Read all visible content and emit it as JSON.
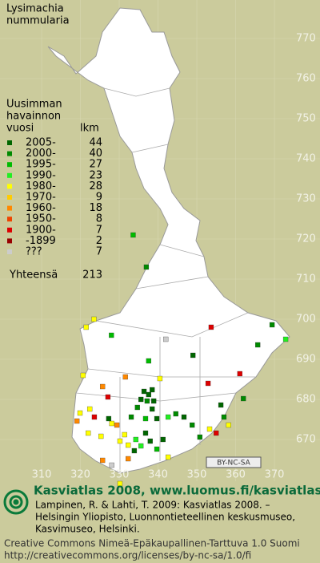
{
  "title": [
    "Lysimachia",
    "nummularia"
  ],
  "legend": {
    "heading": [
      "Uusimman",
      "havainnon",
      "vuosi"
    ],
    "count_heading": "lkm",
    "rows": [
      {
        "label": "2005-",
        "count": 44,
        "color": "#006600"
      },
      {
        "label": "2000-",
        "count": 40,
        "color": "#008a00"
      },
      {
        "label": "1995-",
        "count": 27,
        "color": "#00bb00"
      },
      {
        "label": "1990-",
        "count": 23,
        "color": "#22ee22"
      },
      {
        "label": "1980-",
        "count": 28,
        "color": "#ffff00"
      },
      {
        "label": "1970-",
        "count": 9,
        "color": "#ffcc00"
      },
      {
        "label": "1960-",
        "count": 18,
        "color": "#ff8800"
      },
      {
        "label": "1950-",
        "count": 8,
        "color": "#ee4400"
      },
      {
        "label": "1900-",
        "count": 7,
        "color": "#dd0000"
      },
      {
        "label": "-1899",
        "count": 2,
        "color": "#990000"
      },
      {
        "label": "???",
        "count": 7,
        "color": "#cccccc"
      }
    ],
    "total_label": "Yhteensä",
    "total": 213
  },
  "map": {
    "yticks": [
      770,
      760,
      750,
      740,
      730,
      720,
      710,
      700,
      690,
      680,
      670
    ],
    "xticks": [
      310,
      320,
      330,
      340,
      350,
      360,
      370
    ],
    "points": [
      [
        321.5,
        698,
        4
      ],
      [
        323.5,
        700,
        4
      ],
      [
        328,
        696,
        2
      ],
      [
        349,
        691,
        0
      ],
      [
        353.7,
        698,
        8
      ],
      [
        342,
        695,
        10
      ],
      [
        337,
        713,
        1
      ],
      [
        333.6,
        721,
        2
      ],
      [
        365.7,
        693.6,
        1
      ],
      [
        372.9,
        695,
        3
      ],
      [
        369.4,
        698.6,
        1
      ],
      [
        320.7,
        686,
        4
      ],
      [
        325.7,
        683.2,
        6
      ],
      [
        327.1,
        680.6,
        8
      ],
      [
        331.6,
        685.6,
        6
      ],
      [
        337.6,
        689.6,
        2
      ],
      [
        340.5,
        685.2,
        4
      ],
      [
        352.9,
        684,
        8
      ],
      [
        361.1,
        686.4,
        8
      ],
      [
        362,
        680.2,
        1
      ],
      [
        356.2,
        678.6,
        0
      ],
      [
        336.4,
        682,
        0
      ],
      [
        337.6,
        681.2,
        0
      ],
      [
        338.5,
        682.4,
        0
      ],
      [
        335.6,
        680,
        0
      ],
      [
        337.2,
        679.6,
        1
      ],
      [
        338.9,
        679.6,
        0
      ],
      [
        334.7,
        678,
        1
      ],
      [
        338.5,
        677.6,
        0
      ],
      [
        330.2,
        669.6,
        4
      ],
      [
        331.4,
        671.2,
        4
      ],
      [
        332.3,
        668.6,
        4
      ],
      [
        334.3,
        670,
        3
      ],
      [
        335.6,
        668.4,
        3
      ],
      [
        336.8,
        671.6,
        0
      ],
      [
        338,
        669.6,
        0
      ],
      [
        339.7,
        667.6,
        2
      ],
      [
        341.3,
        670,
        0
      ],
      [
        333.9,
        667.2,
        0
      ],
      [
        328.1,
        674,
        4
      ],
      [
        325.3,
        670.8,
        4
      ],
      [
        322,
        671.6,
        4
      ],
      [
        319.9,
        676.6,
        4
      ],
      [
        319.1,
        674.6,
        6
      ],
      [
        322.4,
        677.6,
        4
      ],
      [
        323.6,
        675.6,
        8
      ],
      [
        327.3,
        675.2,
        0
      ],
      [
        329.4,
        673.6,
        6
      ],
      [
        333.1,
        675.6,
        1
      ],
      [
        336.8,
        675.2,
        2
      ],
      [
        339.7,
        675.2,
        0
      ],
      [
        342.6,
        675.6,
        3
      ],
      [
        344.6,
        676.4,
        1
      ],
      [
        346.7,
        675.6,
        0
      ],
      [
        348.8,
        673.6,
        1
      ],
      [
        350.8,
        670.6,
        1
      ],
      [
        355,
        671.6,
        8
      ],
      [
        353.3,
        672.6,
        4
      ],
      [
        358.2,
        673.6,
        4
      ],
      [
        357,
        675.6,
        1
      ],
      [
        330.2,
        659,
        4
      ],
      [
        325.7,
        664.8,
        6
      ],
      [
        328.1,
        663.6,
        10
      ],
      [
        332.3,
        665.2,
        6
      ],
      [
        342.6,
        665.6,
        4
      ]
    ]
  },
  "badge": "BY-NC-SA",
  "footer": {
    "headline": "Kasviatlas 2008, www.luomus.fi/kasviatlas",
    "citation": [
      "Lampinen, R. & Lahti, T. 2009: Kasviatlas 2008. –",
      "Helsingin Yliopisto, Luonnontieteellinen keskusmuseo,",
      "Kasvimuseo, Helsinki."
    ],
    "license": [
      "Creative Commons Nimeä-Epäkaupallinen-Tarttuva 1.0 Suomi",
      "http://creativecommons.org/licenses/by-nc-sa/1.0/fi"
    ]
  }
}
